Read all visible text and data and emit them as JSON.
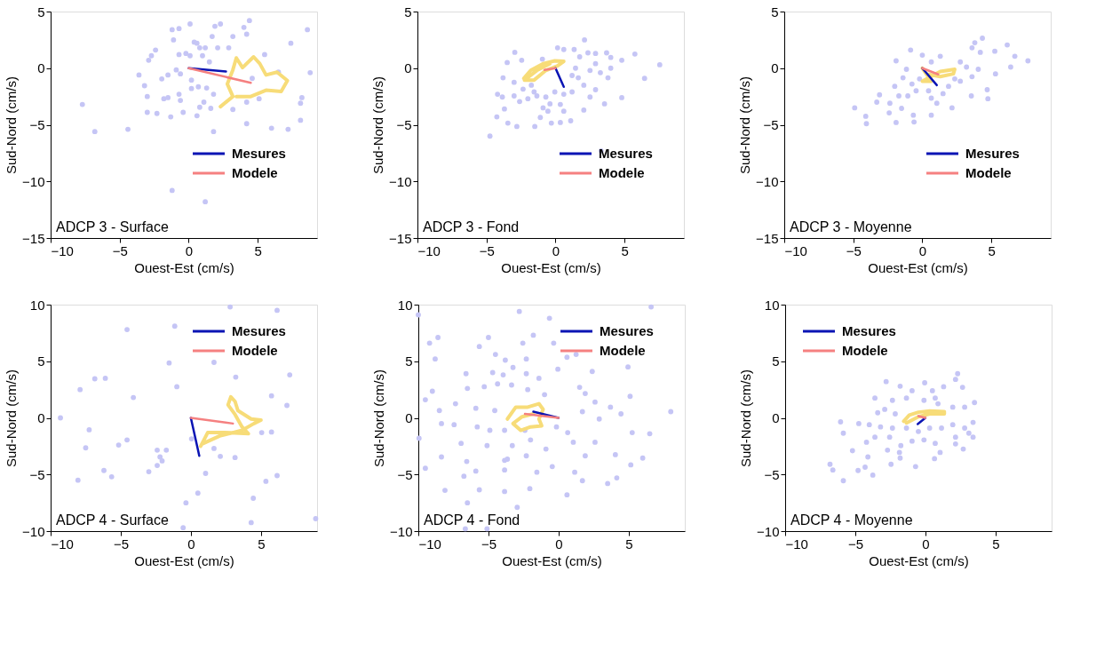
{
  "chart_data": [
    {
      "type": "scatter",
      "xlabel": "Ouest-Est (cm/s)",
      "ylabel": "Sud-Nord (cm/s)",
      "annotations": [
        "ADCP 3 - Surface"
      ],
      "xlim": [
        -10,
        9.3
      ],
      "ylim": [
        -15,
        5
      ],
      "xticks": [
        -10,
        -5,
        0,
        5
      ],
      "yticks": [
        -15,
        -10,
        -5,
        0,
        5
      ],
      "grid": false,
      "legend": "bottom right",
      "series": [
        {
          "type": "scatter",
          "marker": "circle",
          "color": "#c5c5f5",
          "x": [
            0.1,
            1.9,
            2.3,
            4.4,
            4.0,
            4.2,
            8.6,
            -1.2,
            -0.7,
            -1.1,
            0.4,
            0.6,
            1.7,
            3.2,
            7.4,
            0.8,
            1.2,
            2.1,
            2.9,
            -2.4,
            -2.7,
            -2.9,
            -0.7,
            -0.2,
            0.1,
            1.0,
            1.5,
            5.5,
            -3.6,
            -3.2,
            -3.0,
            -3.0,
            -2.3,
            -1.95,
            -1.5,
            -0.9,
            -0.6,
            0.2,
            0.2,
            0.7,
            1.3,
            -1.8,
            -1.5,
            -0.7,
            -0.6,
            -1.3,
            -0.4,
            0.6,
            0.8,
            1.6,
            1.1,
            1.8,
            3.2,
            4.2,
            1.8,
            6.0,
            7.2,
            8.1,
            8.1,
            8.2,
            8.8,
            6.5,
            5.1,
            4.2,
            -7.7,
            -6.8,
            -4.4,
            -1.2,
            1.2,
            4.6
          ],
          "values": [
            3.9,
            3.7,
            3.9,
            4.2,
            3.6,
            3.0,
            3.4,
            3.4,
            3.5,
            2.5,
            2.3,
            2.2,
            2.8,
            2.8,
            2.2,
            1.8,
            1.8,
            1.8,
            1.8,
            1.6,
            1.1,
            0.7,
            1.2,
            1.3,
            1.1,
            1.1,
            0.55,
            1.2,
            -0.6,
            -1.55,
            -2.5,
            -3.9,
            -4.0,
            -0.95,
            -0.6,
            -0.15,
            -0.5,
            -1.05,
            -1.8,
            -1.65,
            -1.75,
            -2.7,
            -2.6,
            -2.3,
            -2.85,
            -4.3,
            -3.9,
            -4.2,
            -3.45,
            -3.55,
            -3.0,
            -2.3,
            -3.65,
            -4.9,
            -5.6,
            -5.3,
            -5.4,
            -4.6,
            -3.1,
            -2.6,
            -0.4,
            -0.35,
            -2.7,
            -3.0,
            -3.2,
            -5.6,
            -5.4,
            -10.8,
            -11.8,
            -0.9
          ]
        },
        {
          "type": "line",
          "color": "#f7dc78",
          "x": [
            2.3,
            3.2,
            2.8,
            3.2,
            3.45,
            3.9,
            4.7,
            5.15,
            5.6,
            6.4,
            7.15,
            6.7,
            5.6,
            4.5,
            3.45
          ],
          "values": [
            -3.4,
            -2.5,
            -1.4,
            -0.15,
            0.9,
            0.05,
            1.0,
            0.4,
            -0.6,
            -0.35,
            -1.1,
            -2.05,
            -1.95,
            -2.5,
            -2.5
          ]
        },
        {
          "type": "line",
          "name": "Mesures",
          "color": "#0a14b4",
          "x": [
            0,
            2.7
          ],
          "values": [
            0,
            -0.3
          ]
        },
        {
          "type": "line",
          "name": "Modele",
          "color": "#f58080",
          "x": [
            0,
            4.5
          ],
          "values": [
            0,
            -1.3
          ]
        }
      ]
    },
    {
      "type": "scatter",
      "xlabel": "Ouest-Est (cm/s)",
      "ylabel": "Sud-Nord (cm/s)",
      "annotations": [
        "ADCP 3 - Fond"
      ],
      "xlim": [
        -10,
        9.3
      ],
      "ylim": [
        -15,
        5
      ],
      "xticks": [
        -10,
        -5,
        0,
        5
      ],
      "yticks": [
        -15,
        -10,
        -5,
        0,
        5
      ],
      "grid": false,
      "legend": "bottom right",
      "series": [
        {
          "type": "scatter",
          "marker": "circle",
          "color": "#c5c5f5",
          "x": [
            2.1,
            0.15,
            0.6,
            1.35,
            -2.95,
            -3.5,
            -2.45,
            -0.95,
            1.75,
            2.35,
            2.9,
            3.7,
            4.0,
            4.8,
            5.75,
            7.55,
            6.45,
            -3.8,
            -3.0,
            -2.35,
            -1.75,
            -1.55,
            -4.2,
            -3.85,
            -3.0,
            -2.6,
            -2.0,
            -1.35,
            -0.7,
            -0.4,
            -0.9,
            -0.55,
            0.35,
            0.6,
            -3.7,
            -4.25,
            -3.45,
            -2.8,
            -1.5,
            -1.1,
            -0.3,
            0.35,
            1.1,
            -4.75,
            3.3,
            1.65,
            2.05,
            1.2,
            2.5,
            3.25,
            3.8,
            2.9,
            2.5,
            3.55,
            4.8,
            2.05,
            1.2,
            0.6,
            -0.05,
            1.45,
            2.9,
            4.0
          ],
          "values": [
            2.5,
            1.8,
            1.65,
            1.65,
            1.4,
            0.5,
            0.7,
            0.8,
            1.0,
            1.35,
            1.3,
            1.35,
            0.95,
            0.7,
            1.25,
            0.3,
            -0.9,
            -0.85,
            -1.25,
            -1.85,
            -1.5,
            -2.1,
            -2.3,
            -2.55,
            -2.45,
            -2.95,
            -2.7,
            -2.45,
            -2.55,
            -3.15,
            -3.5,
            -3.8,
            -3.2,
            -3.8,
            -3.6,
            -4.3,
            -4.85,
            -5.15,
            -5.15,
            -4.35,
            -4.85,
            -4.8,
            -4.65,
            -6.0,
            -7.3,
            -0.85,
            -1.5,
            -0.65,
            -0.2,
            -0.4,
            -0.85,
            -1.9,
            -2.55,
            -3.15,
            -2.6,
            -3.7,
            -2.1,
            -2.3,
            -2.1,
            0.0,
            0.4,
            0.0
          ]
        },
        {
          "type": "line",
          "color": "#f7dc78",
          "x": [
            -2.3,
            -1.8,
            -0.9,
            -0.05,
            0.6,
            0.15,
            -0.7,
            -1.55,
            -2.25,
            -1.35,
            -0.4
          ],
          "values": [
            -0.9,
            -0.2,
            0.4,
            0.65,
            0.6,
            0.2,
            -0.2,
            -1.05,
            -1.05,
            -0.2,
            0.4
          ]
        },
        {
          "type": "line",
          "name": "Mesures",
          "color": "#0a14b4",
          "x": [
            0,
            0.6
          ],
          "values": [
            0,
            -1.65
          ]
        },
        {
          "type": "line",
          "name": "Modele",
          "color": "#f58080",
          "x": [
            0,
            -0.8
          ],
          "values": [
            0,
            -0.15
          ]
        }
      ]
    },
    {
      "type": "scatter",
      "xlabel": "Ouest-Est (cm/s)",
      "ylabel": "Sud-Nord (cm/s)",
      "annotations": [
        "ADCP 3 - Moyenne"
      ],
      "xlim": [
        -10,
        9.3
      ],
      "ylim": [
        -15,
        5
      ],
      "xticks": [
        -10,
        -5,
        0,
        5
      ],
      "yticks": [
        -15,
        -10,
        -5,
        0,
        5
      ],
      "grid": false,
      "legend": "bottom right",
      "series": [
        {
          "type": "scatter",
          "marker": "circle",
          "color": "#c5c5f5",
          "x": [
            4.35,
            3.8,
            3.6,
            4.2,
            6.15,
            5.25,
            6.7,
            7.65,
            6.4,
            5.3,
            4.7,
            4.75,
            3.55,
            2.75,
            2.15,
            -0.85,
            0,
            1.3,
            -1.9,
            -1.15,
            -1.4,
            -2.0,
            -0.75,
            -0.45,
            -1.05,
            -1.7,
            -2.35,
            -3.1,
            -3.3,
            -2.4,
            -1.9,
            -4.1,
            -4.05,
            -4.9,
            -1.5,
            -0.6,
            -0.65,
            0.65,
            0.65,
            1.5,
            1.9,
            2.35,
            2.75,
            3.2,
            3.6,
            4.05,
            0.65,
            -0.2,
            0.45,
            1.05
          ],
          "values": [
            2.65,
            2.25,
            1.8,
            1.4,
            2.05,
            1.5,
            1.05,
            0.65,
            0.1,
            -0.5,
            -1.9,
            -2.7,
            -2.45,
            -1.15,
            -3.5,
            1.6,
            1.15,
            1.05,
            0.65,
            -0.1,
            -0.85,
            -1.6,
            -1.4,
            -2.0,
            -2.45,
            -2.45,
            -3.1,
            -2.35,
            -3.0,
            -3.95,
            -4.8,
            -4.25,
            -4.9,
            -3.5,
            -3.55,
            -4.75,
            -4.15,
            -4.15,
            -2.65,
            -2.25,
            -1.6,
            -0.95,
            0.55,
            0.1,
            -0.75,
            -0.1,
            0.55,
            -0.95,
            -2.0,
            -3.1
          ]
        },
        {
          "type": "line",
          "color": "#f7dc78",
          "x": [
            0,
            0.65,
            0,
            1.3,
            2.35,
            2.25,
            1.3,
            0.45
          ],
          "values": [
            0,
            -1.15,
            -1.15,
            -0.3,
            -0.1,
            -0.5,
            -0.75,
            -0.55
          ]
        },
        {
          "type": "line",
          "name": "Mesures",
          "color": "#0a14b4",
          "x": [
            0,
            1.05
          ],
          "values": [
            0,
            -1.5
          ]
        },
        {
          "type": "line",
          "name": "Modele",
          "color": "#f58080",
          "x": [
            0,
            1.15
          ],
          "values": [
            0,
            -0.55
          ]
        }
      ]
    },
    {
      "type": "scatter",
      "xlabel": "Ouest-Est (cm/s)",
      "ylabel": "Sud-Nord (cm/s)",
      "annotations": [
        "ADCP 4 - Surface"
      ],
      "xlim": [
        -10,
        9
      ],
      "ylim": [
        -10,
        10
      ],
      "xticks": [
        -10,
        -5,
        0,
        5
      ],
      "yticks": [
        -10,
        -5,
        0,
        5,
        10
      ],
      "grid": false,
      "legend": "top right",
      "series": [
        {
          "type": "scatter",
          "marker": "circle",
          "color": "#c5c5f5",
          "x": [
            2.8,
            6.15,
            -1.15,
            -4.55,
            -1.55,
            1.65,
            3.2,
            7.05,
            -6.85,
            -6.1,
            -7.9,
            -1.0,
            -4.1,
            5.75,
            6.85,
            -9.3,
            -7.25,
            -4.55,
            -5.15,
            -7.5,
            -2.4,
            -1.75,
            -2.2,
            -2.05,
            -2.4,
            -3.0,
            -6.2,
            -5.65,
            -8.05,
            0.05,
            1.65,
            2.1,
            3.15,
            5.05,
            5.75,
            1.05,
            6.15,
            5.35,
            0.5,
            4.45,
            -0.35,
            4.3,
            8.9,
            -0.55
          ],
          "values": [
            9.8,
            9.5,
            8.1,
            7.8,
            4.85,
            4.9,
            3.6,
            3.8,
            3.45,
            3.5,
            2.5,
            2.75,
            1.8,
            1.95,
            1.1,
            0.0,
            -1.05,
            -1.95,
            -2.4,
            -2.65,
            -2.85,
            -2.85,
            -3.45,
            -3.8,
            -4.2,
            -4.75,
            -4.65,
            -5.2,
            -5.5,
            -1.85,
            -2.7,
            -3.4,
            -3.5,
            -1.3,
            -1.25,
            -4.9,
            -5.1,
            -5.6,
            -6.65,
            -7.1,
            -7.5,
            -9.25,
            -8.9,
            -9.7
          ]
        },
        {
          "type": "line",
          "color": "#f7dc78",
          "x": [
            0.7,
            1.2,
            2.45,
            4.1,
            3.65,
            3.15,
            2.65,
            2.85,
            3.15,
            3.35,
            4.3,
            5.0,
            4.5,
            3.65,
            2.05,
            0.8
          ],
          "values": [
            -2.5,
            -1.3,
            -1.3,
            -1.4,
            -0.8,
            0.3,
            1.15,
            1.85,
            1.45,
            0.65,
            -0.1,
            -0.2,
            -0.5,
            -1.1,
            -1.6,
            -2.3
          ]
        },
        {
          "type": "line",
          "name": "Mesures",
          "color": "#0a14b4",
          "x": [
            0,
            0.6
          ],
          "values": [
            0,
            -3.35
          ]
        },
        {
          "type": "line",
          "name": "Modele",
          "color": "#f58080",
          "x": [
            0,
            3.0
          ],
          "values": [
            0,
            -0.5
          ]
        }
      ]
    },
    {
      "type": "scatter",
      "xlabel": "Ouest-Est (cm/s)",
      "ylabel": "Sud-Nord (cm/s)",
      "annotations": [
        "ADCP 4 - Fond"
      ],
      "xlim": [
        -10,
        9
      ],
      "ylim": [
        -10,
        10
      ],
      "xticks": [
        -10,
        -5,
        0,
        5
      ],
      "yticks": [
        -10,
        -5,
        0,
        5,
        10
      ],
      "grid": false,
      "legend": "top right",
      "series": [
        {
          "type": "scatter",
          "marker": "circle",
          "color": "#c5c5f5",
          "x": [
            -2.8,
            -0.65,
            6.6,
            -10.0,
            -8.6,
            -5.0,
            -1.8,
            -9.2,
            -5.65,
            -2.55,
            -0.35,
            -8.8,
            -4.5,
            -3.8,
            -2.3,
            0.6,
            1.25,
            -3.25,
            -0.05,
            4.95,
            -6.6,
            -4.7,
            -3.95,
            -2.3,
            -1.4,
            2.4,
            -9.0,
            -9.5,
            -6.5,
            -5.3,
            -4.35,
            -3.35,
            -2.2,
            -1.0,
            1.5,
            1.9,
            2.6,
            5.1,
            -7.35,
            -5.9,
            -4.55,
            -8.5,
            -8.35,
            -7.45,
            -5.8,
            -4.9,
            -3.85,
            -2.4,
            -0.15,
            0.65,
            1.7,
            2.9,
            3.7,
            4.45,
            5.25,
            6.5,
            8.0,
            -9.95,
            -6.95,
            -5.1,
            -3.3,
            -2.0,
            -0.9,
            1.05,
            2.6,
            1.9,
            4.05,
            6.0,
            -8.35,
            -6.55,
            -3.85,
            -3.65,
            -2.3,
            -9.5,
            -5.9,
            -3.85,
            -1.55,
            -0.45,
            1.15,
            1.7,
            4.15,
            3.5,
            5.15,
            -6.75,
            -8.1,
            -5.65,
            -3.85,
            -2.05,
            0.6,
            -6.5,
            -2.95,
            -6.65,
            -5.1
          ],
          "values": [
            9.4,
            8.8,
            9.8,
            9.1,
            7.1,
            7.1,
            7.3,
            6.6,
            6.3,
            6.6,
            6.6,
            5.2,
            5.6,
            5.1,
            5.2,
            5.35,
            5.6,
            4.45,
            4.3,
            4.5,
            3.9,
            4.0,
            3.8,
            3.9,
            3.5,
            4.1,
            2.35,
            1.6,
            2.6,
            2.75,
            3.0,
            2.9,
            2.5,
            2.05,
            2.7,
            2.15,
            1.4,
            1.9,
            1.25,
            0.85,
            0.65,
            0.65,
            -0.5,
            -0.6,
            -0.8,
            -1.1,
            -1.1,
            -1.1,
            -0.8,
            -1.3,
            0.55,
            -0.1,
            0.95,
            0.35,
            -1.3,
            -1.4,
            0.55,
            -1.8,
            -2.25,
            -2.45,
            -2.45,
            -1.95,
            -2.75,
            -2.15,
            -2.15,
            -3.35,
            -3.25,
            -3.55,
            -3.45,
            -3.85,
            -3.75,
            -3.65,
            -3.35,
            -4.45,
            -4.7,
            -4.6,
            -4.8,
            -4.3,
            -4.8,
            -5.55,
            -5.3,
            -5.8,
            -4.15,
            -5.15,
            -6.4,
            -6.35,
            -6.5,
            -6.25,
            -6.8,
            -7.5,
            -7.9,
            -9.8,
            -9.8
          ]
        },
        {
          "type": "line",
          "color": "#f7dc78",
          "x": [
            -3.65,
            -3.05,
            -2.2,
            -1.4,
            -1.1,
            -1.4,
            -1.2,
            -2.0,
            -2.7,
            -3.25,
            -2.6,
            -1.8
          ],
          "values": [
            -0.1,
            0.95,
            0.95,
            1.25,
            0.75,
            -0.1,
            -0.7,
            -0.8,
            -1.1,
            -0.5,
            0.1,
            0.35
          ]
        },
        {
          "type": "line",
          "name": "Mesures",
          "color": "#0a14b4",
          "x": [
            0,
            -1.8
          ],
          "values": [
            0,
            0.55
          ]
        },
        {
          "type": "line",
          "name": "Modele",
          "color": "#f58080",
          "x": [
            0,
            -2.4
          ],
          "values": [
            0,
            0.35
          ]
        }
      ]
    },
    {
      "type": "scatter",
      "xlabel": "Ouest-Est (cm/s)",
      "ylabel": "Sud-Nord (cm/s)",
      "annotations": [
        "ADCP 4 - Moyenne"
      ],
      "xlim": [
        -10,
        9
      ],
      "ylim": [
        -10,
        10
      ],
      "xticks": [
        -10,
        -5,
        0,
        5
      ],
      "yticks": [
        -10,
        -5,
        0,
        5,
        10
      ],
      "grid": false,
      "legend": "top left",
      "series": [
        {
          "type": "scatter",
          "marker": "circle",
          "color": "#c5c5f5",
          "x": [
            2.3,
            2.15,
            -0.05,
            -2.8,
            -1.8,
            -0.95,
            0.5,
            1.3,
            2.65,
            -3.6,
            -2.35,
            -1.35,
            -0.1,
            0.7,
            0.9,
            1.95,
            2.8,
            3.5,
            -3.4,
            -2.9,
            -2.15,
            -6.05,
            -4.75,
            -5.85,
            -4.0,
            -3.2,
            -2.35,
            -1.35,
            -0.5,
            0.3,
            1.15,
            1.95,
            2.8,
            3.4,
            2.15,
            3.1,
            3.4,
            -4.2,
            -3.6,
            -2.55,
            -1.75,
            -0.95,
            -0.1,
            0.7,
            2.15,
            2.7,
            -5.2,
            -4.1,
            -2.7,
            -1.85,
            -1.8,
            1.05,
            0.65,
            -6.8,
            -6.6,
            -4.8,
            -4.3,
            -3.75,
            -2.45,
            -0.7,
            -5.85
          ],
          "values": [
            3.9,
            3.4,
            3.1,
            3.2,
            2.8,
            2.4,
            2.4,
            2.75,
            2.7,
            1.75,
            1.55,
            1.75,
            1.55,
            1.75,
            1.25,
            0.95,
            0.95,
            1.35,
            0.45,
            0.75,
            0.35,
            -0.35,
            -0.5,
            -1.35,
            -0.6,
            -0.8,
            -0.9,
            -0.9,
            -1.2,
            -0.9,
            -0.9,
            -0.6,
            -0.9,
            -0.4,
            -1.7,
            -1.35,
            -1.7,
            -2.15,
            -1.7,
            -1.7,
            -2.45,
            -2.05,
            -1.95,
            -2.25,
            -2.3,
            -2.75,
            -2.9,
            -3.45,
            -2.85,
            -3.05,
            -3.55,
            -3.05,
            -3.6,
            -4.1,
            -4.6,
            -4.65,
            -4.35,
            -5.05,
            -4.1,
            -4.3,
            -5.55
          ]
        },
        {
          "type": "line",
          "color": "#f7dc78",
          "x": [
            -1.55,
            -1.15,
            -0.5,
            0.3,
            1.35,
            1.35,
            0.3,
            -0.5,
            -1.35
          ],
          "values": [
            -0.3,
            0.25,
            0.5,
            0.6,
            0.55,
            0.35,
            0.35,
            0.1,
            -0.45
          ]
        },
        {
          "type": "line",
          "name": "Mesures",
          "color": "#0a14b4",
          "x": [
            0,
            -0.55
          ],
          "values": [
            0,
            -0.55
          ]
        },
        {
          "type": "line",
          "name": "Modele",
          "color": "#f58080",
          "x": [
            0,
            -0.5
          ],
          "values": [
            0,
            0.15
          ]
        }
      ]
    }
  ]
}
